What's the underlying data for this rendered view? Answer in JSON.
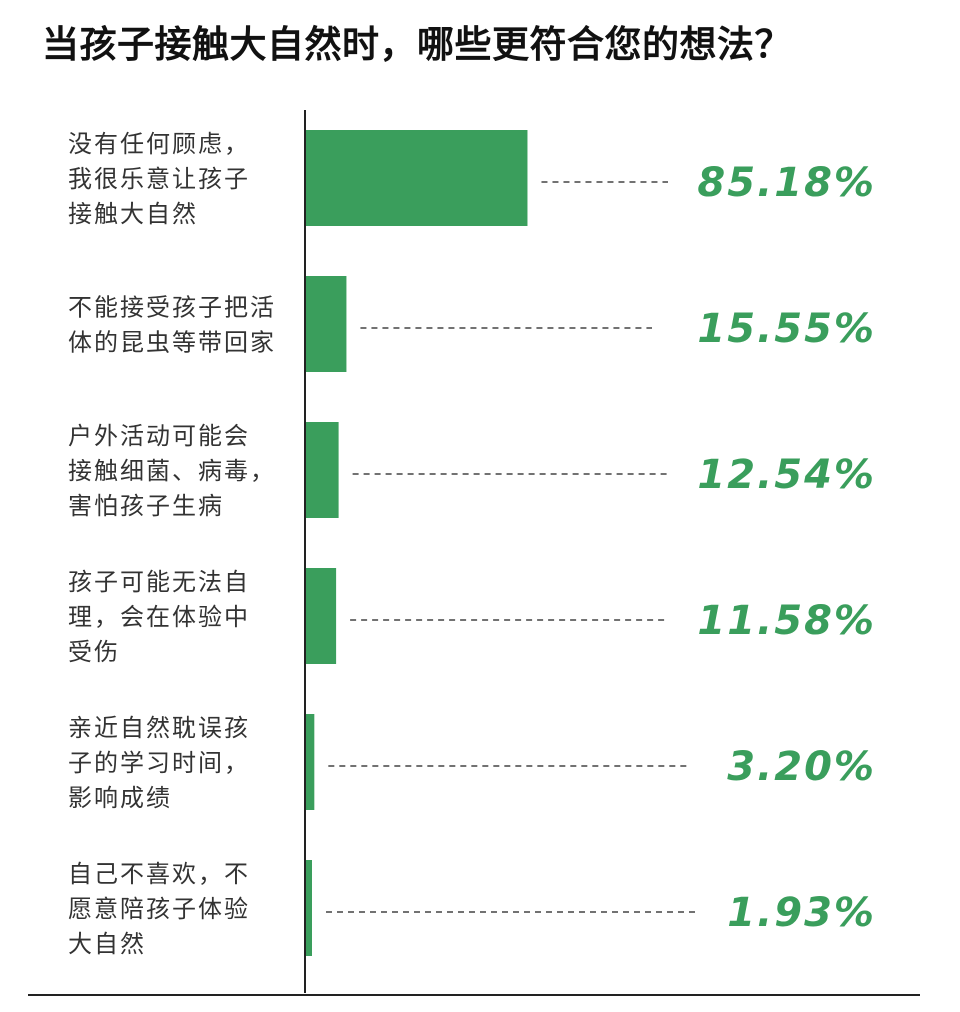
{
  "title": "当孩子接触大自然时，哪些更符合您的想法？",
  "colors": {
    "bar": "#3a9e5c",
    "value_text": "#3a9e5c",
    "axis": "#222222"
  },
  "chart_data": {
    "type": "bar",
    "orientation": "horizontal",
    "title": "当孩子接触大自然时，哪些更符合您的想法？",
    "xlabel": "",
    "ylabel": "",
    "unit": "%",
    "xlim": [
      0,
      100
    ],
    "grid": false,
    "categories": [
      [
        "没有任何顾虑，",
        "我很乐意让孩子",
        "接触大自然"
      ],
      [
        "不能接受孩子把活",
        "体的昆虫等带回家"
      ],
      [
        "户外活动可能会",
        "接触细菌、病毒，",
        "害怕孩子生病"
      ],
      [
        "孩子可能无法自",
        "理，会在体验中",
        "受伤"
      ],
      [
        "亲近自然耽误孩",
        "子的学习时间，",
        "影响成绩"
      ],
      [
        "自己不喜欢，不",
        "愿意陪孩子体验",
        "大自然"
      ]
    ],
    "values": [
      85.18,
      15.55,
      12.54,
      11.58,
      3.2,
      1.93
    ],
    "value_labels": [
      "85.18%",
      "15.55%",
      "12.54%",
      "11.58%",
      "3.20%",
      "1.93%"
    ]
  }
}
